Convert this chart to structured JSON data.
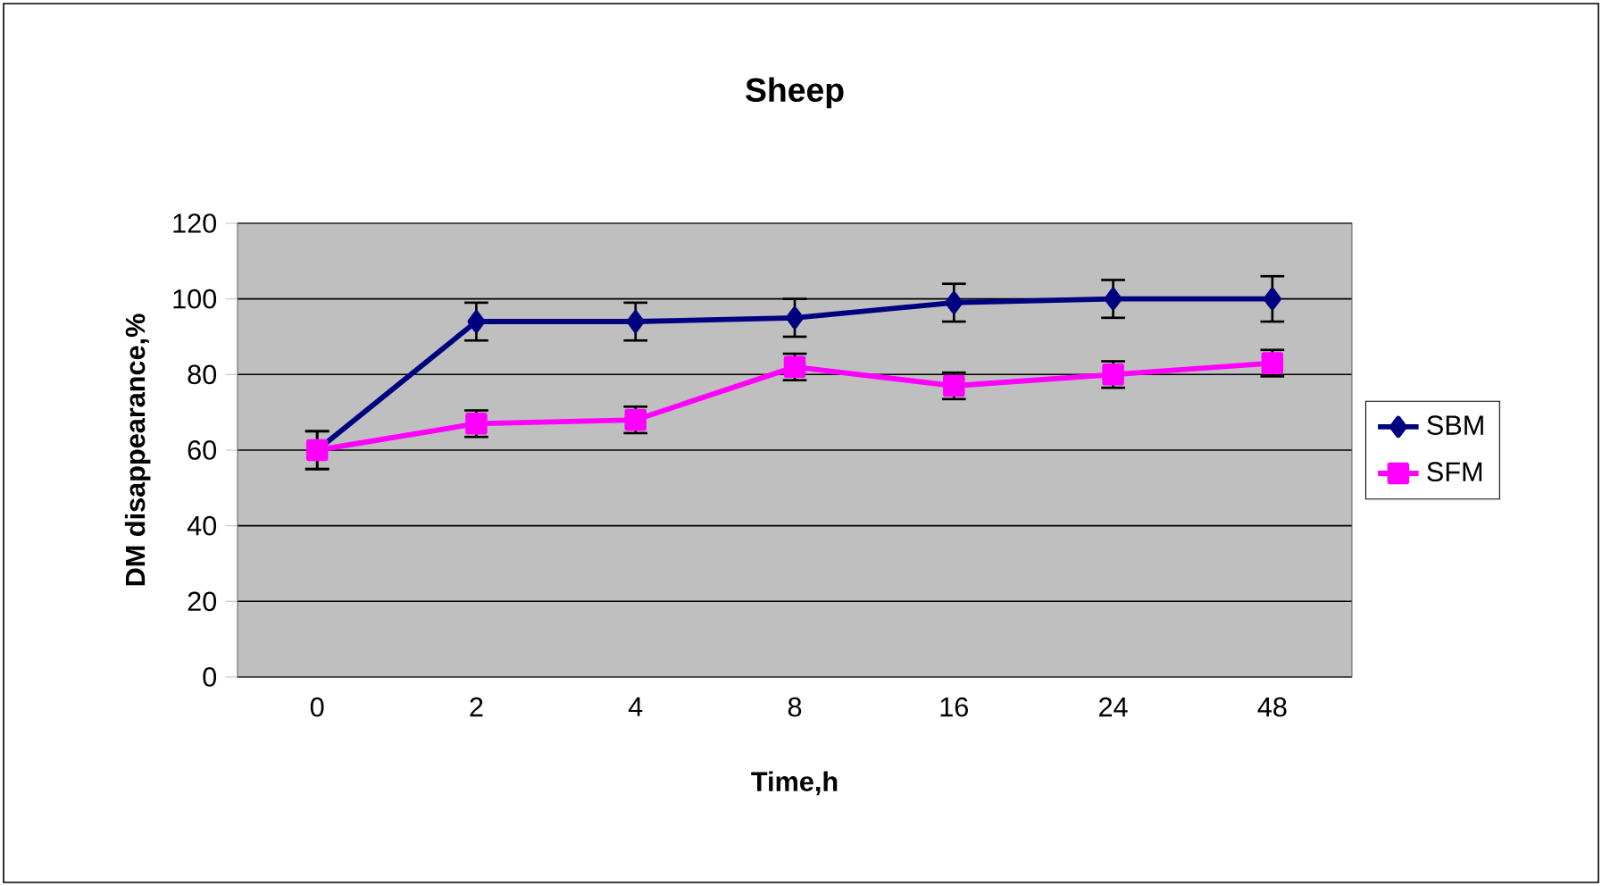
{
  "chart_data": {
    "type": "line",
    "title": "Sheep",
    "xlabel": "Time,h",
    "ylabel": "DM disappearance,%",
    "categories": [
      "0",
      "2",
      "4",
      "8",
      "16",
      "24",
      "48"
    ],
    "series": [
      {
        "name": "SBM",
        "color": "#000080",
        "marker": "diamond",
        "values": [
          60,
          94,
          94,
          95,
          99,
          100,
          100
        ],
        "errors": [
          5,
          5,
          5,
          5,
          5,
          5,
          6
        ]
      },
      {
        "name": "SFM",
        "color": "#ff00ff",
        "marker": "square",
        "values": [
          60,
          67,
          68,
          82,
          77,
          80,
          83
        ],
        "errors": [
          5,
          3.5,
          3.5,
          3.5,
          3.5,
          3.5,
          3.5
        ]
      }
    ],
    "ylim": [
      0,
      120
    ],
    "yticks": [
      0,
      20,
      40,
      60,
      80,
      100,
      120
    ],
    "grid": "y",
    "legend": "right",
    "line_style": "solid"
  }
}
